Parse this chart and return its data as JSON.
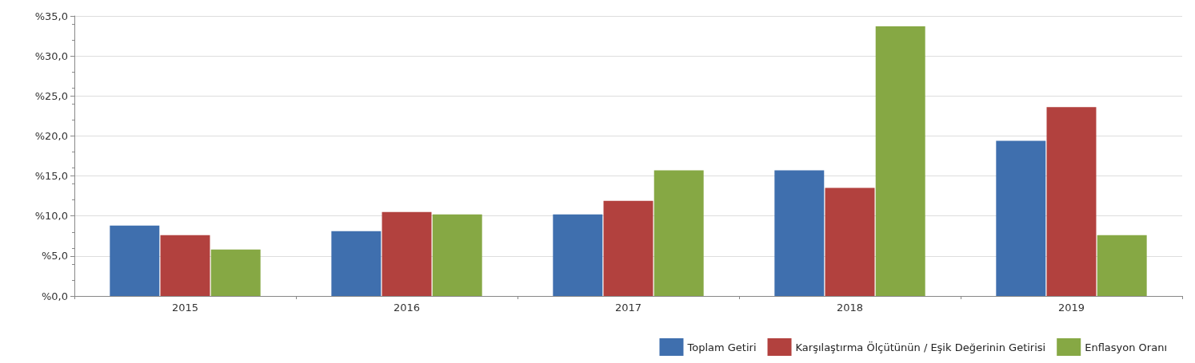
{
  "chart_data": {
    "type": "bar",
    "categories": [
      "2015",
      "2016",
      "2017",
      "2018",
      "2019"
    ],
    "series": [
      {
        "name": "Toplam Getiri",
        "color": "#3f6fae",
        "values": [
          8.8,
          8.1,
          10.2,
          15.7,
          19.4
        ]
      },
      {
        "name": "Karşılaştırma Ölçütünün / Eşik Değerinin Getirisi",
        "color": "#b2413e",
        "values": [
          7.6,
          10.5,
          11.9,
          13.5,
          23.6
        ]
      },
      {
        "name": "Enflasyon Oranı",
        "color": "#86a844",
        "values": [
          5.8,
          10.2,
          15.7,
          33.7,
          7.6
        ]
      }
    ],
    "ylim": [
      0,
      35
    ],
    "yticks": [
      {
        "value": 0,
        "label": "%0,0"
      },
      {
        "value": 5,
        "label": "%5,0"
      },
      {
        "value": 10,
        "label": "%10,0"
      },
      {
        "value": 15,
        "label": "%15,0"
      },
      {
        "value": 20,
        "label": "%20,0"
      },
      {
        "value": 25,
        "label": "%25,0"
      },
      {
        "value": 30,
        "label": "%30,0"
      },
      {
        "value": 35,
        "label": "%35,0"
      }
    ],
    "grid": "y",
    "legend": "bottom right"
  }
}
